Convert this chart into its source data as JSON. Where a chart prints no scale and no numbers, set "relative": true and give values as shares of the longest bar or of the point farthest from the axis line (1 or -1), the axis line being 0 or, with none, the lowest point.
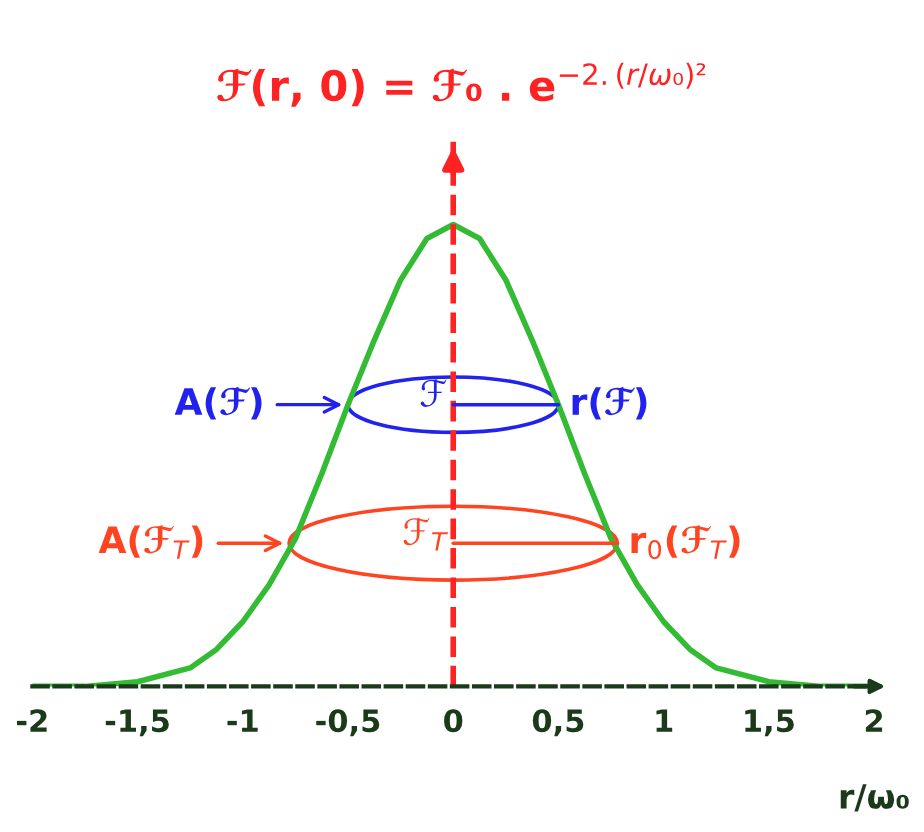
{
  "chart_data": {
    "type": "line",
    "relative": true,
    "title": "ℱ(r, 0) = ℱ₀ . e$^{−2.(r/ω₀)²}$",
    "xlabel": "r/ω₀",
    "x": [
      -2,
      -1.75,
      -1.5,
      -1.25,
      -1.125,
      -1,
      -0.875,
      -0.75,
      -0.625,
      -0.5,
      -0.375,
      -0.25,
      -0.125,
      0,
      0.125,
      0.25,
      0.375,
      0.5,
      0.625,
      0.75,
      0.875,
      1,
      1.125,
      1.25,
      1.5,
      1.75,
      2
    ],
    "series": [
      {
        "color": "#33bb33",
        "values": [
          0,
          0,
          0.01,
          0.04,
          0.08,
          0.14,
          0.22,
          0.32,
          0.46,
          0.61,
          0.75,
          0.88,
          0.97,
          1,
          0.97,
          0.88,
          0.75,
          0.61,
          0.46,
          0.32,
          0.22,
          0.14,
          0.08,
          0.04,
          0.01,
          0,
          0
        ]
      }
    ],
    "xlim": [
      -2,
      2
    ],
    "xticks": [
      -2,
      {
        "value": -1.5,
        "label": "-1,5"
      },
      -1,
      {
        "value": -0.5,
        "label": "-0,5"
      },
      0,
      {
        "value": 0.5,
        "label": "0,5"
      },
      1,
      {
        "value": 1.5,
        "label": "1,5"
      },
      2
    ],
    "ref_lines": [
      {
        "axis": "x",
        "value": 0,
        "color": "#ff2222",
        "line_style": "dashed"
      }
    ],
    "annotations": [
      {
        "text": "A(ℱ)",
        "x": -0.5,
        "y": 0.61
      },
      {
        "text": "ℱ",
        "x": 0,
        "y": 0.61
      },
      {
        "text": "r(ℱ)",
        "x": 0.5,
        "y": 0.61
      },
      {
        "text": "A(ℱ$_{T}$)",
        "x": -0.78,
        "y": 0.31
      },
      {
        "text": "ℱ$_{T}$",
        "x": 0,
        "y": 0.31
      },
      {
        "text": "r$_{0}$(ℱ$_{T}$)",
        "x": 0.78,
        "y": 0.31
      }
    ],
    "grid": false,
    "legend": false,
    "marker": "none",
    "line_style": "solid"
  }
}
